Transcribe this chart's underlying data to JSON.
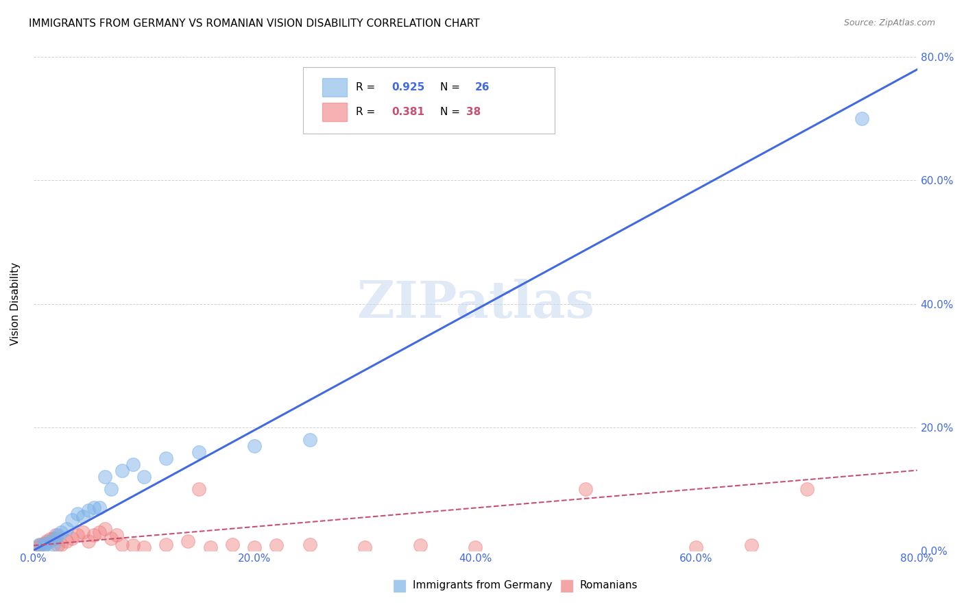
{
  "title": "IMMIGRANTS FROM GERMANY VS ROMANIAN VISION DISABILITY CORRELATION CHART",
  "source": "Source: ZipAtlas.com",
  "ylabel": "Vision Disability",
  "xlim": [
    0.0,
    0.8
  ],
  "ylim": [
    0.0,
    0.8
  ],
  "xtick_labels": [
    "0.0%",
    "20.0%",
    "40.0%",
    "60.0%",
    "80.0%"
  ],
  "xtick_vals": [
    0.0,
    0.2,
    0.4,
    0.6,
    0.8
  ],
  "ytick_labels_right": [
    "0.0%",
    "20.0%",
    "40.0%",
    "60.0%",
    "80.0%"
  ],
  "ytick_vals": [
    0.0,
    0.2,
    0.4,
    0.6,
    0.8
  ],
  "legend1_R": "0.925",
  "legend1_N": "26",
  "legend2_R": "0.381",
  "legend2_N": "38",
  "blue_color": "#7EB3E8",
  "pink_color": "#F08080",
  "blue_line_color": "#4169E1",
  "pink_line_color": "#C85070",
  "accent_color": "#4169E1",
  "watermark": "ZIPatlas",
  "blue_scatter_x": [
    0.005,
    0.008,
    0.01,
    0.012,
    0.015,
    0.018,
    0.02,
    0.022,
    0.025,
    0.03,
    0.035,
    0.04,
    0.045,
    0.05,
    0.055,
    0.06,
    0.065,
    0.07,
    0.08,
    0.09,
    0.1,
    0.12,
    0.15,
    0.2,
    0.25,
    0.75
  ],
  "blue_scatter_y": [
    0.01,
    0.005,
    0.008,
    0.012,
    0.015,
    0.01,
    0.02,
    0.025,
    0.03,
    0.035,
    0.05,
    0.06,
    0.055,
    0.065,
    0.07,
    0.07,
    0.12,
    0.1,
    0.13,
    0.14,
    0.12,
    0.15,
    0.16,
    0.17,
    0.18,
    0.7
  ],
  "pink_scatter_x": [
    0.003,
    0.005,
    0.007,
    0.01,
    0.012,
    0.015,
    0.018,
    0.02,
    0.022,
    0.025,
    0.03,
    0.035,
    0.04,
    0.045,
    0.05,
    0.055,
    0.06,
    0.065,
    0.07,
    0.075,
    0.08,
    0.09,
    0.1,
    0.12,
    0.14,
    0.15,
    0.16,
    0.18,
    0.2,
    0.22,
    0.25,
    0.3,
    0.35,
    0.4,
    0.5,
    0.6,
    0.65,
    0.7
  ],
  "pink_scatter_y": [
    0.005,
    0.008,
    0.01,
    0.012,
    0.015,
    0.018,
    0.02,
    0.025,
    0.008,
    0.01,
    0.015,
    0.02,
    0.025,
    0.03,
    0.015,
    0.025,
    0.03,
    0.035,
    0.02,
    0.025,
    0.01,
    0.008,
    0.005,
    0.01,
    0.015,
    0.1,
    0.005,
    0.01,
    0.005,
    0.008,
    0.01,
    0.005,
    0.008,
    0.005,
    0.1,
    0.005,
    0.008,
    0.1
  ],
  "blue_line_x": [
    0.0,
    0.8
  ],
  "blue_line_y": [
    0.0,
    0.78
  ],
  "pink_line_x": [
    0.0,
    0.8
  ],
  "pink_line_y": [
    0.008,
    0.13
  ],
  "background_color": "#FFFFFF",
  "title_fontsize": 11,
  "axis_label_color": "#4169E1",
  "grid_color": "#CCCCCC"
}
